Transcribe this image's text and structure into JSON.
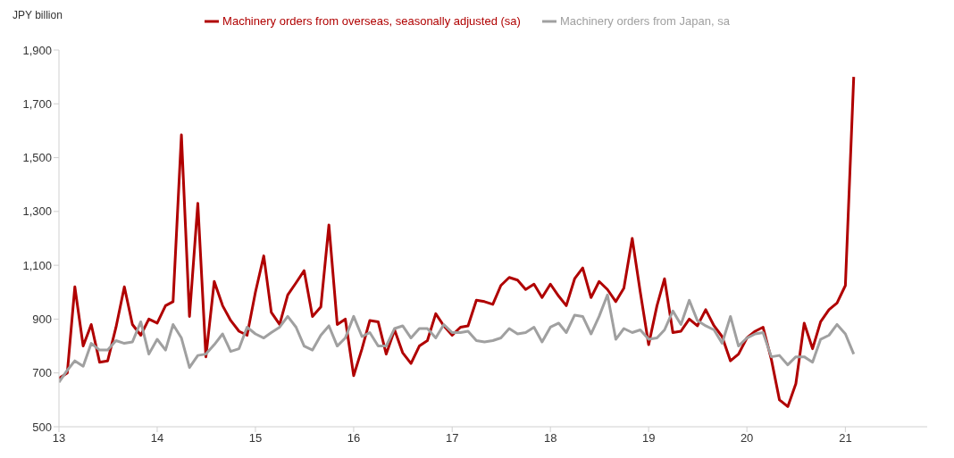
{
  "chart_data": {
    "type": "line",
    "ylabel": "JPY billion",
    "x": [
      "2013-01",
      "2013-02",
      "2013-03",
      "2013-04",
      "2013-05",
      "2013-06",
      "2013-07",
      "2013-08",
      "2013-09",
      "2013-10",
      "2013-11",
      "2013-12",
      "2014-01",
      "2014-02",
      "2014-03",
      "2014-04",
      "2014-05",
      "2014-06",
      "2014-07",
      "2014-08",
      "2014-09",
      "2014-10",
      "2014-11",
      "2014-12",
      "2015-01",
      "2015-02",
      "2015-03",
      "2015-04",
      "2015-05",
      "2015-06",
      "2015-07",
      "2015-08",
      "2015-09",
      "2015-10",
      "2015-11",
      "2015-12",
      "2016-01",
      "2016-02",
      "2016-03",
      "2016-04",
      "2016-05",
      "2016-06",
      "2016-07",
      "2016-08",
      "2016-09",
      "2016-10",
      "2016-11",
      "2016-12",
      "2017-01",
      "2017-02",
      "2017-03",
      "2017-04",
      "2017-05",
      "2017-06",
      "2017-07",
      "2017-08",
      "2017-09",
      "2017-10",
      "2017-11",
      "2017-12",
      "2018-01",
      "2018-02",
      "2018-03",
      "2018-04",
      "2018-05",
      "2018-06",
      "2018-07",
      "2018-08",
      "2018-09",
      "2018-10",
      "2018-11",
      "2018-12",
      "2019-01",
      "2019-02",
      "2019-03",
      "2019-04",
      "2019-05",
      "2019-06",
      "2019-07",
      "2019-08",
      "2019-09",
      "2019-10",
      "2019-11",
      "2019-12",
      "2020-01",
      "2020-02",
      "2020-03",
      "2020-04",
      "2020-05",
      "2020-06",
      "2020-07",
      "2020-08",
      "2020-09",
      "2020-10",
      "2020-11",
      "2020-12",
      "2021-01",
      "2021-02"
    ],
    "series": [
      {
        "name": "Machinery orders from overseas, seasonally adjusted (sa)",
        "color": "#b00000",
        "values": [
          680,
          700,
          1020,
          800,
          880,
          740,
          745,
          870,
          1020,
          880,
          840,
          900,
          885,
          950,
          965,
          1585,
          910,
          1330,
          760,
          1040,
          950,
          895,
          855,
          840,
          1000,
          1135,
          925,
          880,
          990,
          1035,
          1080,
          910,
          945,
          1250,
          880,
          900,
          690,
          790,
          895,
          890,
          770,
          860,
          775,
          735,
          800,
          820,
          920,
          875,
          840,
          870,
          875,
          970,
          965,
          955,
          1025,
          1055,
          1045,
          1010,
          1030,
          980,
          1030,
          985,
          950,
          1050,
          1090,
          980,
          1040,
          1010,
          965,
          1015,
          1200,
          1000,
          805,
          950,
          1050,
          850,
          855,
          900,
          875,
          935,
          875,
          835,
          745,
          770,
          830,
          855,
          870,
          750,
          600,
          575,
          660,
          885,
          790,
          890,
          935,
          960,
          1025,
          1800
        ]
      },
      {
        "name": "Machinery orders from Japan, sa",
        "color": "#a0a0a0",
        "values": [
          665,
          710,
          745,
          725,
          810,
          785,
          785,
          820,
          810,
          815,
          890,
          770,
          825,
          785,
          880,
          830,
          720,
          765,
          770,
          805,
          845,
          780,
          790,
          870,
          845,
          830,
          850,
          870,
          910,
          870,
          800,
          785,
          840,
          875,
          800,
          830,
          910,
          835,
          850,
          800,
          800,
          865,
          875,
          830,
          865,
          865,
          830,
          880,
          850,
          850,
          855,
          820,
          815,
          820,
          830,
          865,
          845,
          850,
          870,
          815,
          870,
          885,
          850,
          915,
          910,
          845,
          910,
          990,
          825,
          865,
          850,
          860,
          825,
          830,
          860,
          930,
          880,
          970,
          895,
          875,
          860,
          810,
          910,
          800,
          830,
          845,
          850,
          760,
          765,
          730,
          760,
          760,
          740,
          825,
          840,
          880,
          845,
          770
        ]
      }
    ],
    "xlim": [
      "2013-01",
      "2021-11"
    ],
    "xticks": [
      {
        "value": "2013-01",
        "label": "13"
      },
      {
        "value": "2014-01",
        "label": "14"
      },
      {
        "value": "2015-01",
        "label": "15"
      },
      {
        "value": "2016-01",
        "label": "16"
      },
      {
        "value": "2017-01",
        "label": "17"
      },
      {
        "value": "2018-01",
        "label": "18"
      },
      {
        "value": "2019-01",
        "label": "19"
      },
      {
        "value": "2020-01",
        "label": "20"
      },
      {
        "value": "2021-01",
        "label": "21"
      }
    ],
    "ylim": [
      500,
      1900
    ],
    "yticks": [
      500,
      700,
      900,
      {
        "value": 1100,
        "label": "1,100"
      },
      {
        "value": 1300,
        "label": "1,300"
      },
      {
        "value": 1500,
        "label": "1,500"
      },
      {
        "value": 1700,
        "label": "1,700"
      },
      {
        "value": 1900,
        "label": "1,900"
      }
    ],
    "grid": false,
    "legend": "top",
    "marker": "none",
    "line_style": "solid"
  }
}
